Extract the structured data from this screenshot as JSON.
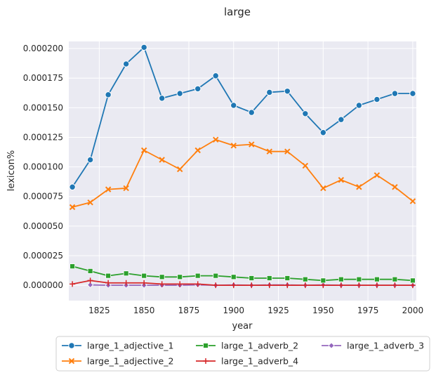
{
  "chart_data": {
    "type": "line",
    "title": "large",
    "xlabel": "year",
    "ylabel": "lexicon%",
    "xlim": [
      1808,
      2002
    ],
    "ylim": [
      -1.3e-05,
      0.000206
    ],
    "x_ticks": [
      1825,
      1850,
      1875,
      1900,
      1925,
      1950,
      1975,
      2000
    ],
    "y_ticks": [
      0.0,
      2.5e-05,
      5e-05,
      7.5e-05,
      0.0001,
      0.000125,
      0.00015,
      0.000175,
      0.0002
    ],
    "x_tick_labels": [
      "1825",
      "1850",
      "1875",
      "1900",
      "1925",
      "1950",
      "1975",
      "2000"
    ],
    "y_tick_labels": [
      "0.000000",
      "0.000025",
      "0.000050",
      "0.000075",
      "0.000100",
      "0.000125",
      "0.000150",
      "0.000175",
      "0.000200"
    ],
    "grid": true,
    "legend_position": "bottom-center",
    "x": [
      1810,
      1820,
      1830,
      1840,
      1850,
      1860,
      1870,
      1880,
      1890,
      1900,
      1910,
      1920,
      1930,
      1940,
      1950,
      1960,
      1970,
      1980,
      1990,
      2000
    ],
    "series": [
      {
        "name": "large_1_adjective_1",
        "color": "#1f77b4",
        "marker": "circle",
        "values": [
          8.3e-05,
          0.000106,
          0.000161,
          0.000187,
          0.000201,
          0.000158,
          0.000162,
          0.000166,
          0.000177,
          0.000152,
          0.000146,
          0.000163,
          0.000164,
          0.000145,
          0.000129,
          0.00014,
          0.000152,
          0.000157,
          0.000162,
          0.000162
        ]
      },
      {
        "name": "large_1_adjective_2",
        "color": "#ff7f0e",
        "marker": "x",
        "values": [
          6.6e-05,
          7e-05,
          8.1e-05,
          8.2e-05,
          0.000114,
          0.000106,
          9.8e-05,
          0.000114,
          0.000123,
          0.000118,
          0.000119,
          0.000113,
          0.000113,
          0.000101,
          8.2e-05,
          8.9e-05,
          8.3e-05,
          9.3e-05,
          8.3e-05,
          7.1e-05
        ]
      },
      {
        "name": "large_1_adverb_2",
        "color": "#2ca02c",
        "marker": "square",
        "values": [
          1.6e-05,
          1.2e-05,
          8e-06,
          1e-05,
          8e-06,
          7e-06,
          7e-06,
          8e-06,
          8e-06,
          7e-06,
          6e-06,
          6e-06,
          6e-06,
          5e-06,
          4e-06,
          5e-06,
          5e-06,
          5e-06,
          5e-06,
          4e-06
        ]
      },
      {
        "name": "large_1_adverb_4",
        "color": "#d62728",
        "marker": "plus",
        "values": [
          1e-06,
          4e-06,
          2e-06,
          2e-06,
          2e-06,
          1e-06,
          1e-06,
          1e-06,
          0.0,
          0.0,
          0.0,
          0.0,
          0.0,
          0.0,
          0.0,
          0.0,
          0.0,
          0.0,
          0.0,
          0.0
        ]
      },
      {
        "name": "large_1_adverb_3",
        "color": "#9467bd",
        "marker": "diamond",
        "values": [
          null,
          3e-07,
          0.0,
          0.0,
          0.0,
          0.0,
          0.0,
          3e-07,
          0.0,
          3e-07,
          0.0,
          3e-07,
          3e-07,
          0.0,
          3e-07,
          0.0,
          0.0,
          0.0,
          0.0,
          0.0
        ]
      }
    ],
    "legend_order": [
      "large_1_adjective_1",
      "large_1_adjective_2",
      "large_1_adverb_2",
      "large_1_adverb_4",
      "large_1_adverb_3"
    ]
  }
}
